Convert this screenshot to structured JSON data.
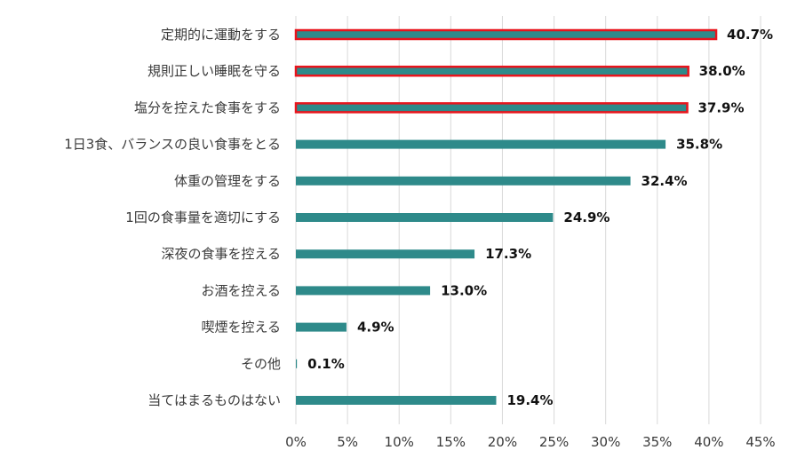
{
  "chart_data": {
    "type": "bar",
    "orientation": "horizontal",
    "categories": [
      "定期的に運動をする",
      "規則正しい睡眠を守る",
      "塩分を控えた食事をする",
      "1日3食、バランスの良い食事をとる",
      "体重の管理をする",
      "1回の食事量を適切にする",
      "深夜の食事を控える",
      "お酒を控える",
      "喫煙を控える",
      "その他",
      "当てはまるものはない"
    ],
    "values": [
      40.7,
      38.0,
      37.9,
      35.8,
      32.4,
      24.9,
      17.3,
      13.0,
      4.9,
      0.1,
      19.4
    ],
    "value_labels": [
      "40.7%",
      "38.0%",
      "37.9%",
      "35.8%",
      "32.4%",
      "24.9%",
      "17.3%",
      "13.0%",
      "4.9%",
      "0.1%",
      "19.4%"
    ],
    "highlighted": [
      true,
      true,
      true,
      false,
      false,
      false,
      false,
      false,
      false,
      false,
      false
    ],
    "xlim": [
      0,
      45
    ],
    "xticks": [
      0,
      5,
      10,
      15,
      20,
      25,
      30,
      35,
      40,
      45
    ],
    "xtick_labels": [
      "0%",
      "5%",
      "10%",
      "15%",
      "20%",
      "25%",
      "30%",
      "35%",
      "40%",
      "45%"
    ],
    "grid": true,
    "title": "",
    "xlabel": "",
    "ylabel": "",
    "colors": {
      "bar": "#2e8a8a",
      "highlight_border": "#e8141c",
      "grid": "#d9d9d9"
    }
  }
}
